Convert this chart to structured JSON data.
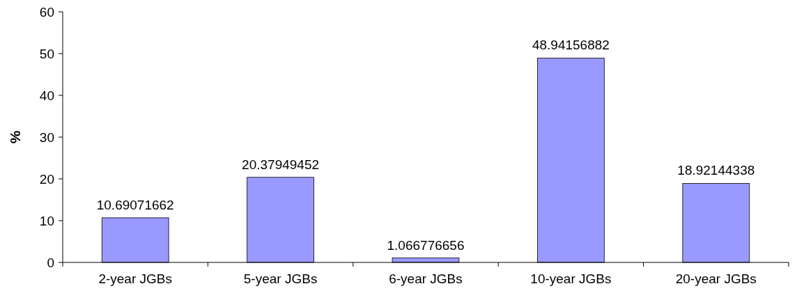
{
  "chart_data": {
    "type": "bar",
    "ylabel": "%",
    "categories": [
      "2-year JGBs",
      "5-year JGBs",
      "6-year JGBs",
      "10-year JGBs",
      "20-year JGBs"
    ],
    "values": [
      10.69071662,
      20.37949452,
      1.066776656,
      48.94156882,
      18.92144338
    ],
    "color": "#9999ff",
    "ylim": [
      0,
      60
    ],
    "yticks": [
      0,
      10,
      20,
      30,
      40,
      50,
      60
    ],
    "grid": false,
    "data_labels": true
  }
}
